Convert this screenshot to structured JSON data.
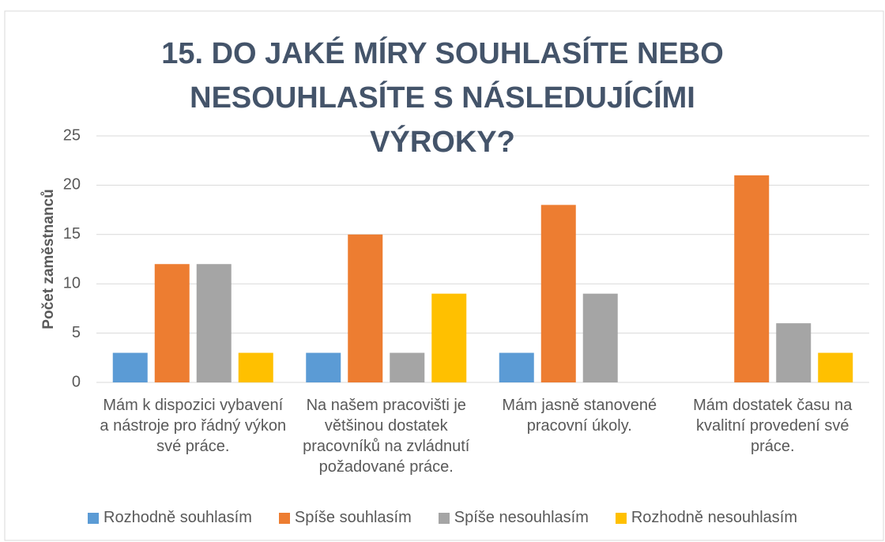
{
  "chart_data": {
    "type": "bar",
    "title": "15. DO JAKÉ MÍRY SOUHLASÍTE NEBO NESOUHLASÍTE S NÁSLEDUJÍCÍMI VÝROKY?",
    "y_label": "Počet zaměstnanců",
    "categories": [
      "Mám k dispozici vybavení a nástroje pro řádný výkon své práce.",
      "Na našem pracovišti je většinou dostatek pracovníků na zvládnutí požadované práce.",
      "Mám jasně stanovené pracovní úkoly.",
      "Mám dostatek času na kvalitní provedení své práce."
    ],
    "series": [
      {
        "name": "Rozhodně souhlasím",
        "color": "#5b9bd5",
        "values": [
          3,
          3,
          3,
          0
        ]
      },
      {
        "name": "Spíše souhlasím",
        "color": "#ed7d31",
        "values": [
          12,
          15,
          18,
          21
        ]
      },
      {
        "name": "Spíše nesouhlasím",
        "color": "#a5a5a5",
        "values": [
          12,
          3,
          9,
          6
        ]
      },
      {
        "name": "Rozhodně nesouhlasím",
        "color": "#ffc000",
        "values": [
          3,
          9,
          0,
          3
        ]
      }
    ],
    "ylim": [
      0,
      25
    ],
    "yticks": [
      0,
      5,
      10,
      15,
      20,
      25
    ],
    "grid": true,
    "legend": "bottom"
  }
}
